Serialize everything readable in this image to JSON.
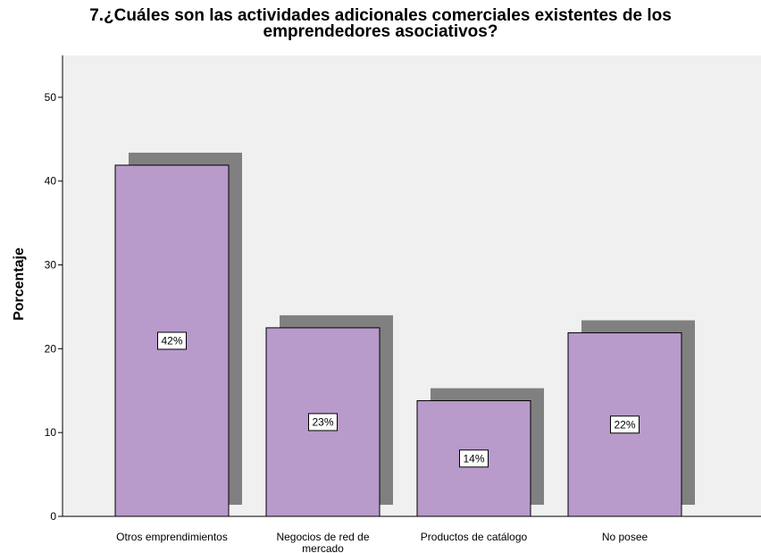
{
  "chart_data": {
    "type": "bar",
    "title_line1": "7.¿Cuáles son las actividades adicionales comerciales existentes de los",
    "title_line2": "emprendedores asociativos?",
    "xlabel": "",
    "ylabel": "Porcentaje",
    "ylim": [
      0,
      55
    ],
    "yticks": [
      0,
      10,
      20,
      30,
      40,
      50
    ],
    "categories": [
      [
        "Otros emprendimientos"
      ],
      [
        "Negocios de red de",
        "mercado"
      ],
      [
        "Productos de catálogo"
      ],
      [
        "No posee"
      ]
    ],
    "values": [
      41.9,
      22.5,
      13.8,
      21.9
    ],
    "data_labels": [
      "42%",
      "23%",
      "14%",
      "22%"
    ],
    "grid": false,
    "legend": "none",
    "colors": {
      "bar": "#b89acb",
      "shadow": "#808080",
      "plot_bg": "#f0f0f0",
      "axis": "#000000"
    }
  }
}
